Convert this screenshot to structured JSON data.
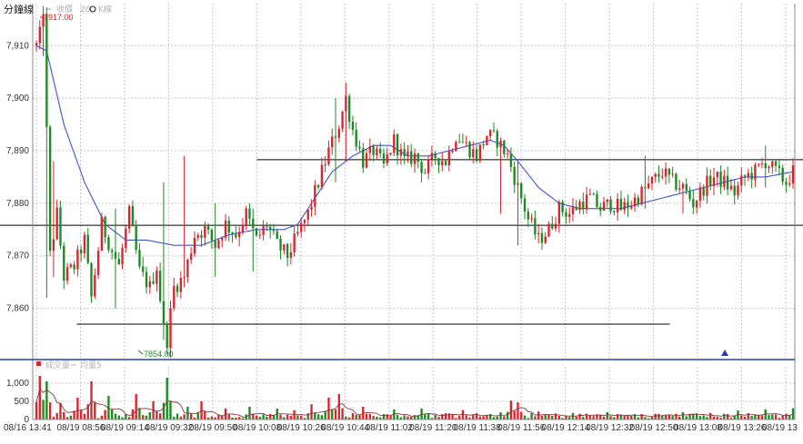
{
  "header": {
    "title": "分鐘線",
    "legend_price": "收價",
    "legend_ma": "K線",
    "legend_volume": "成交量",
    "legend_volume_ma": "均量5"
  },
  "colors": {
    "up": "#d8242d",
    "down": "#1c8a22",
    "ma": "#3f51e0",
    "volume_ma": "#8c3a3a",
    "separator": "#1f3fbf",
    "grid": "#c8c8c8"
  },
  "chart_data": [
    {
      "type": "candlestick",
      "title": "分鐘線",
      "x_ticks": [
        "08/16 13:41",
        "08/19 08:56",
        "08/19 09:14",
        "08/19 09:32",
        "08/19 09:50",
        "08/19 10:08",
        "08/19 10:26",
        "08/19 10:44",
        "08/19 11:02",
        "08/19 11:20",
        "08/19 11:38",
        "08/19 11:56",
        "08/19 12:14",
        "08/19 12:32",
        "08/19 12:50",
        "08/19 13:08",
        "08/19 13:26",
        "08/19 13"
      ],
      "y_ticks": [
        "7,860",
        "7,870",
        "7,880",
        "7,890",
        "7,900",
        "7,910"
      ],
      "ylim": [
        7852.5,
        7918
      ],
      "grid": true,
      "annotations": {
        "max_label": "7917.00",
        "min_label": "7854.00"
      },
      "horizontal_lines": [
        {
          "value": 7888.3,
          "x_from": "08/19 10:08",
          "x_to": "08/19 13"
        },
        {
          "value": 7875.8,
          "x_from": "08/16 13:41",
          "x_to": "08/19 13"
        },
        {
          "value": 7857.0,
          "x_from": "08/19 08:56",
          "x_to": "08/19 12:50"
        }
      ],
      "marker": {
        "symbol": "triangle-up",
        "at": "08/19 13:08"
      },
      "anchors": [
        [
          0,
          7910
        ],
        [
          1,
          7912
        ],
        [
          2,
          7917
        ],
        [
          4,
          7870
        ],
        [
          6,
          7878
        ],
        [
          8,
          7866
        ],
        [
          11,
          7868
        ],
        [
          14,
          7873
        ],
        [
          16,
          7862
        ],
        [
          19,
          7876
        ],
        [
          22,
          7871
        ],
        [
          24,
          7868
        ],
        [
          27,
          7878
        ],
        [
          30,
          7867
        ],
        [
          33,
          7864
        ],
        [
          35,
          7868
        ],
        [
          37,
          7856
        ],
        [
          38,
          7854
        ],
        [
          40,
          7864
        ],
        [
          43,
          7866
        ],
        [
          46,
          7874
        ],
        [
          49,
          7875
        ],
        [
          52,
          7872
        ],
        [
          55,
          7876
        ],
        [
          58,
          7874
        ],
        [
          61,
          7878
        ],
        [
          64,
          7873
        ],
        [
          67,
          7876
        ],
        [
          70,
          7872
        ],
        [
          73,
          7870
        ],
        [
          76,
          7874
        ],
        [
          79,
          7878
        ],
        [
          82,
          7884
        ],
        [
          85,
          7890
        ],
        [
          88,
          7895
        ],
        [
          90,
          7900
        ],
        [
          92,
          7894
        ],
        [
          95,
          7888
        ],
        [
          98,
          7890
        ],
        [
          101,
          7887
        ],
        [
          104,
          7892
        ],
        [
          107,
          7888
        ],
        [
          110,
          7889
        ],
        [
          113,
          7886
        ],
        [
          116,
          7889
        ],
        [
          119,
          7888
        ],
        [
          122,
          7893
        ],
        [
          125,
          7891
        ],
        [
          128,
          7889
        ],
        [
          131,
          7893
        ],
        [
          134,
          7892
        ],
        [
          137,
          7889
        ],
        [
          140,
          7883
        ],
        [
          143,
          7877
        ],
        [
          146,
          7873
        ],
        [
          149,
          7875
        ],
        [
          152,
          7879
        ],
        [
          155,
          7878
        ],
        [
          158,
          7880
        ],
        [
          161,
          7881
        ],
        [
          164,
          7879
        ],
        [
          167,
          7880
        ],
        [
          170,
          7879
        ],
        [
          173,
          7880
        ],
        [
          176,
          7882
        ],
        [
          179,
          7884
        ],
        [
          182,
          7886
        ],
        [
          185,
          7884
        ],
        [
          188,
          7883
        ],
        [
          191,
          7880
        ],
        [
          194,
          7883
        ],
        [
          197,
          7885
        ],
        [
          200,
          7884
        ],
        [
          203,
          7882
        ],
        [
          206,
          7885
        ],
        [
          209,
          7886
        ],
        [
          212,
          7888
        ],
        [
          215,
          7886
        ],
        [
          218,
          7884
        ],
        [
          220,
          7886
        ]
      ],
      "ma_anchors": [
        [
          0,
          7910
        ],
        [
          3,
          7909
        ],
        [
          8,
          7895
        ],
        [
          14,
          7884
        ],
        [
          20,
          7876
        ],
        [
          26,
          7873
        ],
        [
          32,
          7873
        ],
        [
          40,
          7872
        ],
        [
          48,
          7872
        ],
        [
          56,
          7874
        ],
        [
          64,
          7875
        ],
        [
          72,
          7875
        ],
        [
          76,
          7876
        ],
        [
          80,
          7880
        ],
        [
          86,
          7886
        ],
        [
          92,
          7889
        ],
        [
          98,
          7891
        ],
        [
          103,
          7891
        ],
        [
          108,
          7889
        ],
        [
          114,
          7889
        ],
        [
          120,
          7890
        ],
        [
          126,
          7891
        ],
        [
          132,
          7892
        ],
        [
          136,
          7891
        ],
        [
          140,
          7888
        ],
        [
          146,
          7883
        ],
        [
          152,
          7880
        ],
        [
          158,
          7879
        ],
        [
          164,
          7879
        ],
        [
          170,
          7879
        ],
        [
          176,
          7880
        ],
        [
          182,
          7881
        ],
        [
          188,
          7882
        ],
        [
          194,
          7883
        ],
        [
          200,
          7884
        ],
        [
          206,
          7885
        ],
        [
          212,
          7885
        ],
        [
          220,
          7886
        ]
      ],
      "spikes": [
        [
          2,
          7917,
          7908
        ],
        [
          3,
          7914,
          7862
        ],
        [
          5,
          7888,
          7866
        ],
        [
          23,
          7879,
          7860
        ],
        [
          37,
          7884,
          7854
        ],
        [
          43,
          7889,
          7864
        ],
        [
          52,
          7880,
          7866
        ],
        [
          63,
          7879,
          7867
        ],
        [
          87,
          7900,
          7884
        ],
        [
          90,
          7903,
          7888
        ],
        [
          135,
          7892,
          7878
        ],
        [
          140,
          7888,
          7872
        ],
        [
          177,
          7889,
          7879
        ],
        [
          188,
          7881,
          7878
        ],
        [
          212,
          7891,
          7883
        ]
      ],
      "n_bars": 221
    },
    {
      "type": "bar",
      "y_ticks": [
        "0",
        "500",
        "1,000"
      ],
      "ylim": [
        0,
        1300
      ],
      "title": "成交量",
      "peaks": [
        [
          1,
          1200
        ],
        [
          3,
          1050
        ],
        [
          7,
          450
        ],
        [
          12,
          600
        ],
        [
          16,
          1050
        ],
        [
          21,
          650
        ],
        [
          29,
          700
        ],
        [
          34,
          500
        ],
        [
          38,
          1150
        ],
        [
          44,
          350
        ],
        [
          48,
          500
        ],
        [
          55,
          300
        ],
        [
          62,
          350
        ],
        [
          70,
          300
        ],
        [
          75,
          250
        ],
        [
          80,
          420
        ],
        [
          85,
          600
        ],
        [
          88,
          700
        ],
        [
          95,
          350
        ],
        [
          104,
          280
        ],
        [
          112,
          300
        ],
        [
          124,
          260
        ],
        [
          135,
          200
        ],
        [
          138,
          520
        ],
        [
          140,
          470
        ],
        [
          146,
          220
        ],
        [
          156,
          180
        ],
        [
          166,
          200
        ],
        [
          176,
          150
        ],
        [
          188,
          200
        ],
        [
          196,
          180
        ],
        [
          204,
          250
        ],
        [
          212,
          280
        ],
        [
          220,
          310
        ]
      ],
      "base_level": 120
    }
  ]
}
